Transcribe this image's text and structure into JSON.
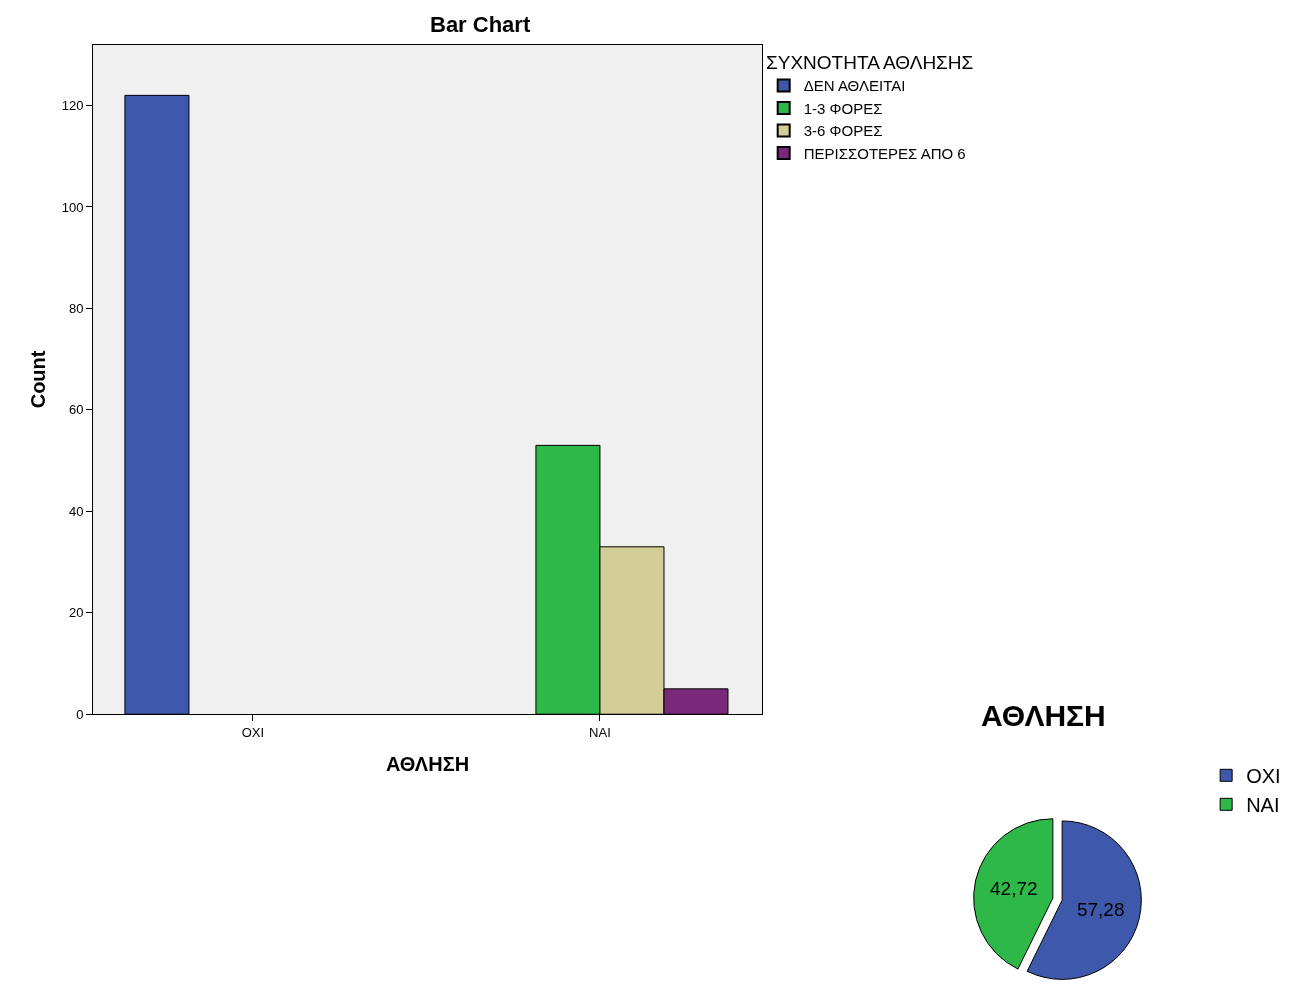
{
  "chart_data": [
    {
      "type": "bar",
      "title": "Bar Chart",
      "xlabel": "ΑΘΛΗΣΗ",
      "ylabel": "Count",
      "legend_title": "ΣΥΧΝΟΤΗΤΑ ΑΘΛΗΣΗΣ",
      "categories": [
        "ΟΧΙ",
        "ΝΑΙ"
      ],
      "series": [
        {
          "name": "ΔΕΝ ΑΘΛΕΙΤΑΙ",
          "color": "#3e58ac",
          "values": [
            122,
            null
          ]
        },
        {
          "name": "1-3 ΦΟΡΕΣ",
          "color": "#2eb848",
          "values": [
            null,
            53
          ]
        },
        {
          "name": "3-6 ΦΟΡΕΣ",
          "color": "#d3ce97",
          "values": [
            null,
            33
          ]
        },
        {
          "name": "ΠΕΡΙΣΣΟΤΕΡΕΣ ΑΠΟ 6",
          "color": "#79287a",
          "values": [
            null,
            5
          ]
        }
      ],
      "ylim": [
        0,
        132
      ],
      "yticks": [
        0,
        20,
        40,
        60,
        80,
        100,
        120
      ],
      "grid": false,
      "legend": "right"
    },
    {
      "type": "pie",
      "title": "ΑΘΛΗΣΗ",
      "categories": [
        "ΟΧΙ",
        "ΝΑΙ"
      ],
      "values": [
        57.28,
        42.72
      ],
      "value_labels": [
        "57,28",
        "42,72"
      ],
      "colors": [
        "#3e58ac",
        "#2eb848"
      ],
      "legend": "top right"
    }
  ]
}
